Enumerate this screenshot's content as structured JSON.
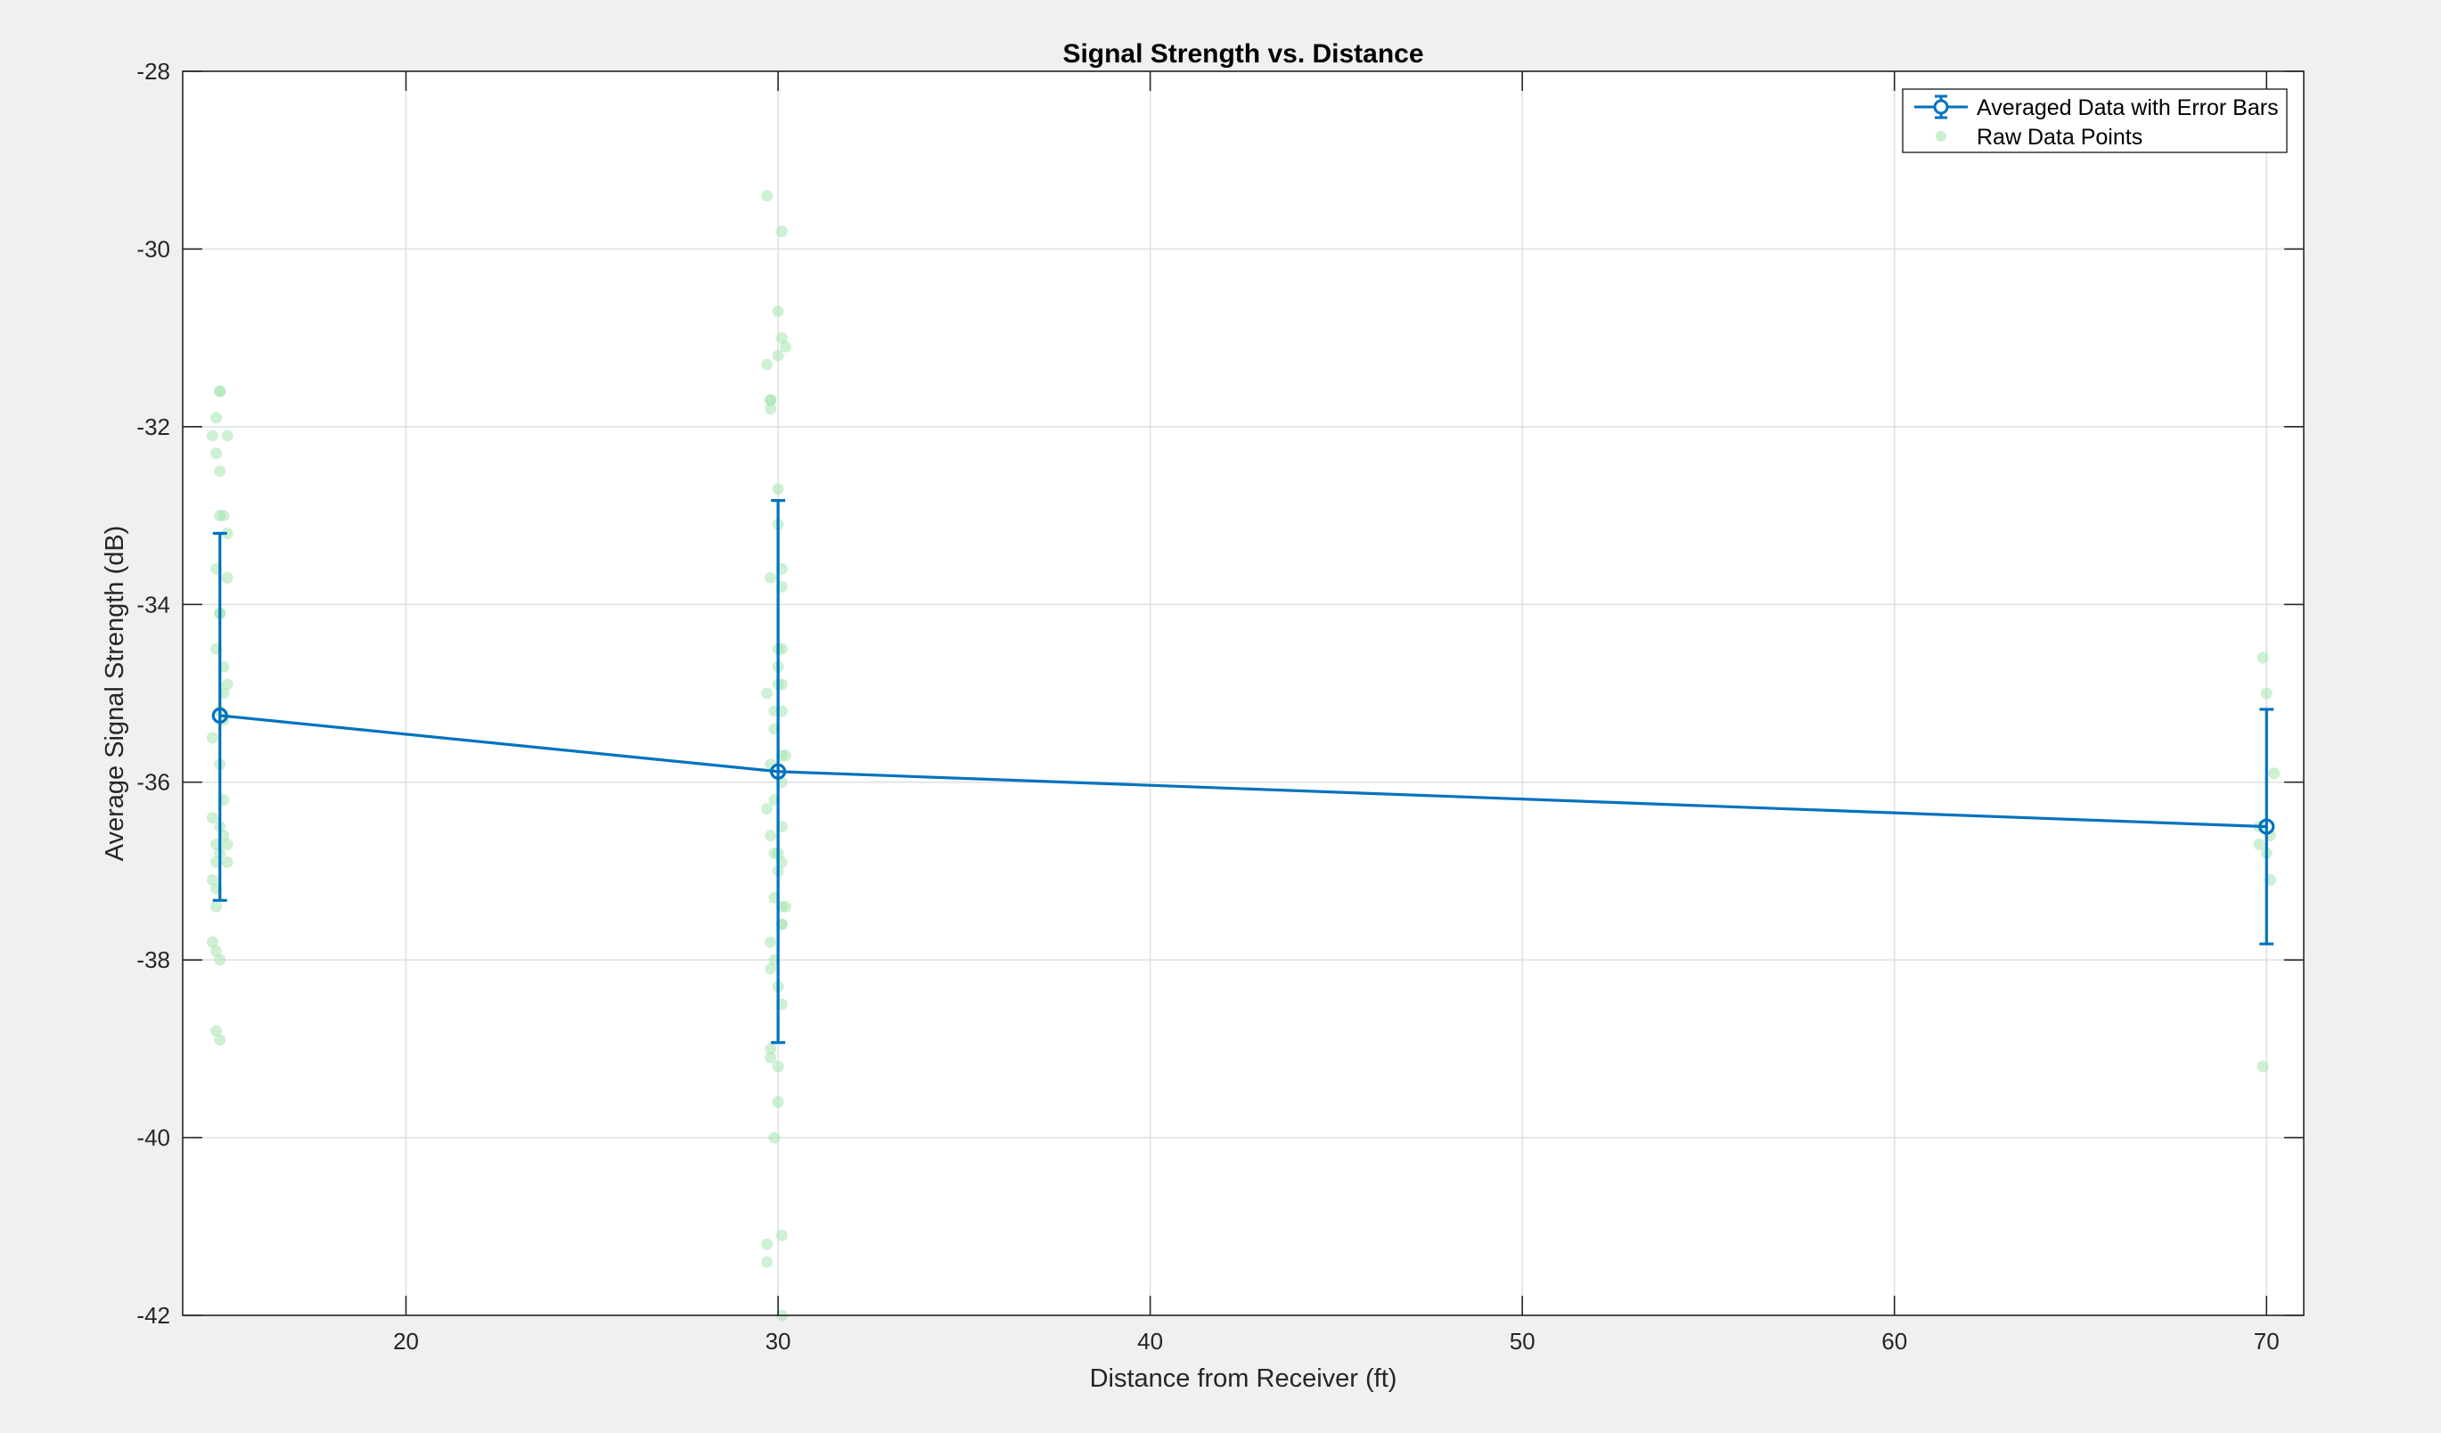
{
  "chart_data": {
    "type": "scatter",
    "title": "Signal Strength vs. Distance",
    "xlabel": "Distance from Receiver (ft)",
    "ylabel": "Average Signal Strength (dB)",
    "xlim": [
      14,
      71
    ],
    "ylim": [
      -42,
      -28
    ],
    "xticks": [
      20,
      30,
      40,
      50,
      60,
      70
    ],
    "yticks": [
      -42,
      -40,
      -38,
      -36,
      -34,
      -32,
      -30,
      -28
    ],
    "grid": true,
    "legend_position": "top-right",
    "colors": {
      "averaged": "#0072bd",
      "raw": "#a6e3ae",
      "grid": "#dfdfdf",
      "background": "#f0f0f0",
      "axes_background": "#ffffff"
    },
    "series": [
      {
        "name": "Averaged Data with Error Bars",
        "kind": "errorbar-line",
        "x": [
          15,
          30,
          70
        ],
        "y": [
          -35.25,
          -35.88,
          -36.5
        ],
        "err_low": [
          -37.33,
          -38.93,
          -37.82
        ],
        "err_high": [
          -33.2,
          -32.83,
          -35.18
        ]
      },
      {
        "name": "Raw Data Points",
        "kind": "scatter",
        "points": [
          [
            15.0,
            -31.6
          ],
          [
            15.0,
            -31.6
          ],
          [
            14.9,
            -31.9
          ],
          [
            14.8,
            -32.1
          ],
          [
            15.2,
            -32.1
          ],
          [
            14.9,
            -32.3
          ],
          [
            15.0,
            -32.5
          ],
          [
            15.0,
            -33.0
          ],
          [
            15.1,
            -33.0
          ],
          [
            15.2,
            -33.2
          ],
          [
            14.9,
            -33.6
          ],
          [
            15.2,
            -33.7
          ],
          [
            15.0,
            -34.1
          ],
          [
            15.0,
            -34.1
          ],
          [
            14.9,
            -34.5
          ],
          [
            15.1,
            -34.7
          ],
          [
            15.2,
            -34.9
          ],
          [
            15.1,
            -35.0
          ],
          [
            15.0,
            -35.2
          ],
          [
            15.1,
            -35.3
          ],
          [
            14.8,
            -35.5
          ],
          [
            15.0,
            -35.8
          ],
          [
            15.1,
            -36.2
          ],
          [
            14.8,
            -36.4
          ],
          [
            15.0,
            -36.5
          ],
          [
            14.9,
            -36.7
          ],
          [
            15.2,
            -36.7
          ],
          [
            15.1,
            -36.6
          ],
          [
            15.0,
            -36.8
          ],
          [
            14.9,
            -36.9
          ],
          [
            15.2,
            -36.9
          ],
          [
            14.8,
            -37.1
          ],
          [
            14.9,
            -37.2
          ],
          [
            14.9,
            -37.4
          ],
          [
            14.8,
            -37.8
          ],
          [
            14.9,
            -37.9
          ],
          [
            15.0,
            -38.0
          ],
          [
            14.9,
            -38.8
          ],
          [
            15.0,
            -38.9
          ],
          [
            29.7,
            -29.4
          ],
          [
            30.1,
            -29.8
          ],
          [
            30.0,
            -30.7
          ],
          [
            30.1,
            -31.0
          ],
          [
            30.2,
            -31.1
          ],
          [
            30.0,
            -31.2
          ],
          [
            29.7,
            -31.3
          ],
          [
            29.8,
            -31.7
          ],
          [
            29.8,
            -31.7
          ],
          [
            29.8,
            -31.8
          ],
          [
            30.0,
            -32.7
          ],
          [
            30.0,
            -33.1
          ],
          [
            30.1,
            -33.6
          ],
          [
            29.8,
            -33.7
          ],
          [
            30.1,
            -33.8
          ],
          [
            30.0,
            -34.5
          ],
          [
            30.1,
            -34.5
          ],
          [
            30.0,
            -34.7
          ],
          [
            30.0,
            -34.9
          ],
          [
            30.1,
            -34.9
          ],
          [
            29.7,
            -35.0
          ],
          [
            29.9,
            -35.2
          ],
          [
            30.1,
            -35.2
          ],
          [
            29.9,
            -35.4
          ],
          [
            30.1,
            -35.7
          ],
          [
            29.8,
            -35.8
          ],
          [
            30.2,
            -35.7
          ],
          [
            30.1,
            -36.0
          ],
          [
            29.9,
            -36.2
          ],
          [
            29.7,
            -36.3
          ],
          [
            29.8,
            -36.6
          ],
          [
            30.1,
            -36.5
          ],
          [
            29.9,
            -36.8
          ],
          [
            30.0,
            -36.8
          ],
          [
            30.1,
            -36.9
          ],
          [
            30.0,
            -37.0
          ],
          [
            29.9,
            -37.3
          ],
          [
            30.2,
            -37.4
          ],
          [
            30.1,
            -37.4
          ],
          [
            30.1,
            -37.6
          ],
          [
            30.1,
            -37.6
          ],
          [
            29.8,
            -37.8
          ],
          [
            29.9,
            -38.0
          ],
          [
            29.8,
            -38.1
          ],
          [
            30.0,
            -38.3
          ],
          [
            30.1,
            -38.5
          ],
          [
            29.8,
            -39.0
          ],
          [
            29.8,
            -39.1
          ],
          [
            30.0,
            -39.2
          ],
          [
            30.0,
            -39.6
          ],
          [
            29.9,
            -40.0
          ],
          [
            30.1,
            -41.1
          ],
          [
            29.7,
            -41.2
          ],
          [
            29.7,
            -41.4
          ],
          [
            30.1,
            -42.0
          ],
          [
            69.9,
            -34.6
          ],
          [
            70.0,
            -35.0
          ],
          [
            70.2,
            -35.9
          ],
          [
            69.8,
            -36.5
          ],
          [
            70.1,
            -36.6
          ],
          [
            69.8,
            -36.7
          ],
          [
            70.0,
            -36.8
          ],
          [
            70.1,
            -37.1
          ],
          [
            69.9,
            -39.2
          ]
        ]
      }
    ]
  }
}
